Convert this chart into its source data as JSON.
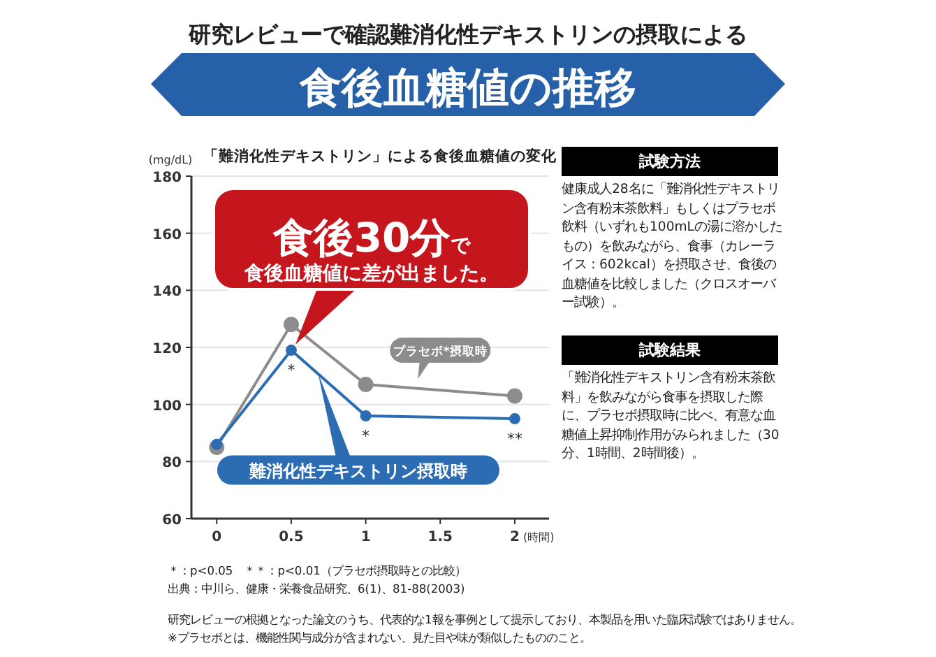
{
  "chart_data": {
    "type": "line",
    "subtitle": "研究レビューで確認難消化性デキストリンの摂取による",
    "title": "食後血糖値の推移",
    "ylabel": "(mg/dL)",
    "xlabel": "(時間)",
    "x": [
      0,
      0.5,
      1,
      2
    ],
    "series": [
      {
        "name": "プラセボ*摂取時",
        "color": "#8c8c8c",
        "values": [
          85,
          128,
          107,
          103
        ]
      },
      {
        "name": "難消化性デキストリン摂取時",
        "color": "#2b6cb3",
        "values": [
          86,
          119,
          96,
          95
        ]
      }
    ],
    "xlim": [
      -0.17,
      2.23
    ],
    "xticks": [
      0,
      0.5,
      1,
      1.5,
      2
    ],
    "ylim": [
      60,
      180
    ],
    "yticks": [
      60,
      80,
      100,
      120,
      140,
      160,
      180
    ],
    "grid": "y",
    "marker": "circle",
    "line_style": "solid",
    "annotations": [
      "「難消化性デキストリン」による食後血糖値の変化",
      "食後30分で",
      "食後血糖値に差が出ました。",
      "試験方法",
      "健康成人28名に「難消化性デキストリン含有粉末茶飲料」もしくはプラセボ飲料（いずれも100mLの湯に溶かしたもの）を飲みながら、食事（カレーライス：602kcal）を摂取させ、食後の血糖値を比較しました（クロスオーバー試験）。",
      "試験結果",
      "「難消化性デキストリン含有粉末茶飲料」を飲みながら食事を摂取した際に、プラセボ摂取時に比べ、有意な血糖値上昇抑制作用がみられました（30分、1時間、2時間後）。",
      "＊：p<0.05　＊＊：p<0.01（プラセボ摂取時との比較）",
      "出典：中川ら、健康・栄養食品研究、6(1)、81-88(2003)",
      "研究レビューの根拠となった論文のうち、代表的な1報を事例として提示しており、本製品を用いた臨床試験ではありません。",
      "※プラセボとは、機能性関与成分が含まれない、見た目や味が類似したもののこと。",
      {
        "text": "*",
        "x": 0.5,
        "y": 119
      },
      {
        "text": "*",
        "x": 1,
        "y": 96
      },
      {
        "text": "**",
        "x": 2,
        "y": 95
      }
    ]
  }
}
